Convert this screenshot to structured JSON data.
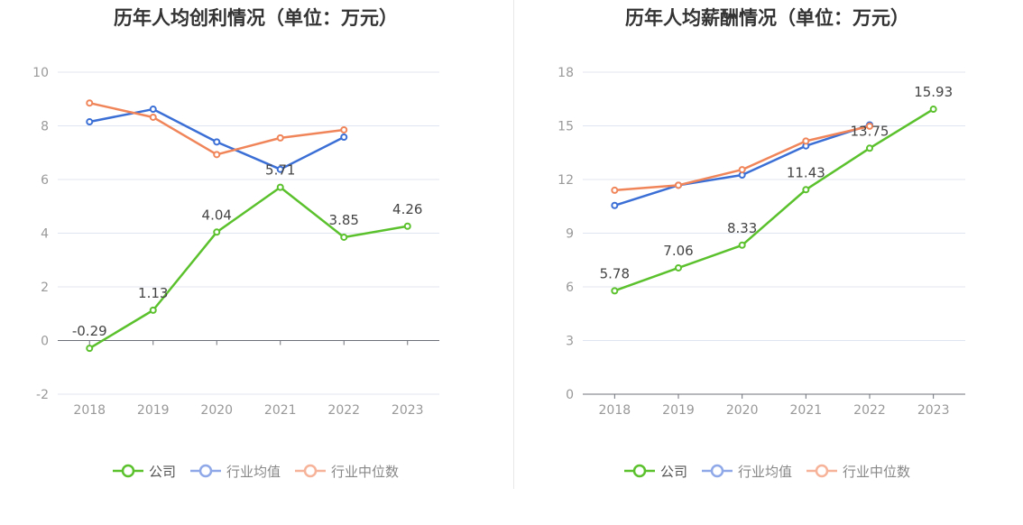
{
  "chart_data": [
    {
      "type": "line",
      "title": "历年人均创利情况（单位：万元）",
      "categories": [
        "2018",
        "2019",
        "2020",
        "2021",
        "2022",
        "2023"
      ],
      "ylim": [
        -2,
        10
      ],
      "yticks": [
        -2,
        0,
        2,
        4,
        6,
        8,
        10
      ],
      "grid": true,
      "legend_position": "bottom",
      "series": [
        {
          "name": "公司",
          "color": "#5bc12d",
          "values": [
            -0.29,
            1.13,
            4.04,
            5.71,
            3.85,
            4.26
          ],
          "labels": [
            "-0.29",
            "1.13",
            "4.04",
            "5.71",
            "3.85",
            "4.26"
          ]
        },
        {
          "name": "行业均值",
          "color": "#3b6fd6",
          "values": [
            8.15,
            8.62,
            7.4,
            6.38,
            7.58,
            null
          ]
        },
        {
          "name": "行业中位数",
          "color": "#f0855a",
          "values": [
            8.85,
            8.32,
            6.93,
            7.55,
            7.85,
            null
          ]
        }
      ]
    },
    {
      "type": "line",
      "title": "历年人均薪酬情况（单位：万元）",
      "categories": [
        "2018",
        "2019",
        "2020",
        "2021",
        "2022",
        "2023"
      ],
      "ylim": [
        0,
        18
      ],
      "yticks": [
        0,
        3,
        6,
        9,
        12,
        15,
        18
      ],
      "grid": true,
      "legend_position": "bottom",
      "series": [
        {
          "name": "公司",
          "color": "#5bc12d",
          "values": [
            5.78,
            7.06,
            8.33,
            11.43,
            13.75,
            15.93
          ],
          "labels": [
            "5.78",
            "7.06",
            "8.33",
            "11.43",
            "13.75",
            "15.93"
          ]
        },
        {
          "name": "行业均值",
          "color": "#3b6fd6",
          "values": [
            10.55,
            11.68,
            12.25,
            13.88,
            15.05,
            null
          ]
        },
        {
          "name": "行业中位数",
          "color": "#f0855a",
          "values": [
            11.4,
            11.68,
            12.55,
            14.15,
            14.98,
            null
          ]
        }
      ]
    }
  ],
  "legend": {
    "items": [
      {
        "label": "公司",
        "color": "#5bc12d",
        "icon": "circle-line-marker"
      },
      {
        "label": "行业均值",
        "color": "#8fa9e8",
        "icon": "circle-line-marker"
      },
      {
        "label": "行业中位数",
        "color": "#f7b39a",
        "icon": "circle-line-marker"
      }
    ]
  },
  "colors": {
    "axis": "#6e7079",
    "grid": "#e0e6f1",
    "tick_text": "#999999",
    "label_text": "#444444"
  }
}
